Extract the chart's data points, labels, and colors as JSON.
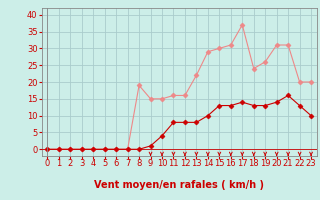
{
  "x_labels": [
    0,
    1,
    2,
    3,
    4,
    5,
    6,
    7,
    8,
    9,
    10,
    11,
    12,
    13,
    14,
    15,
    16,
    17,
    18,
    19,
    20,
    21,
    22,
    23
  ],
  "wind_mean": [
    0,
    0,
    0,
    0,
    0,
    0,
    0,
    0,
    0,
    1,
    4,
    8,
    8,
    8,
    10,
    13,
    13,
    14,
    13,
    13,
    14,
    16,
    13,
    10
  ],
  "wind_gust": [
    0,
    0,
    0,
    0,
    0,
    0,
    0,
    0,
    19,
    15,
    15,
    16,
    16,
    22,
    29,
    30,
    31,
    37,
    24,
    26,
    31,
    31,
    20,
    20
  ],
  "bg_color": "#cceee8",
  "grid_color": "#aacccc",
  "line_mean_color": "#cc0000",
  "line_gust_color": "#ee8888",
  "marker_mean_color": "#cc0000",
  "marker_gust_color": "#ee8888",
  "xlabel": "Vent moyen/en rafales ( km/h )",
  "xlim": [
    -0.5,
    23.5
  ],
  "ylim": [
    -2,
    42
  ],
  "yticks": [
    0,
    5,
    10,
    15,
    20,
    25,
    30,
    35,
    40
  ],
  "xticks": [
    0,
    1,
    2,
    3,
    4,
    5,
    6,
    7,
    8,
    9,
    10,
    11,
    12,
    13,
    14,
    15,
    16,
    17,
    18,
    19,
    20,
    21,
    22,
    23
  ],
  "tick_color": "#cc0000",
  "label_fontsize": 7,
  "tick_fontsize": 6
}
